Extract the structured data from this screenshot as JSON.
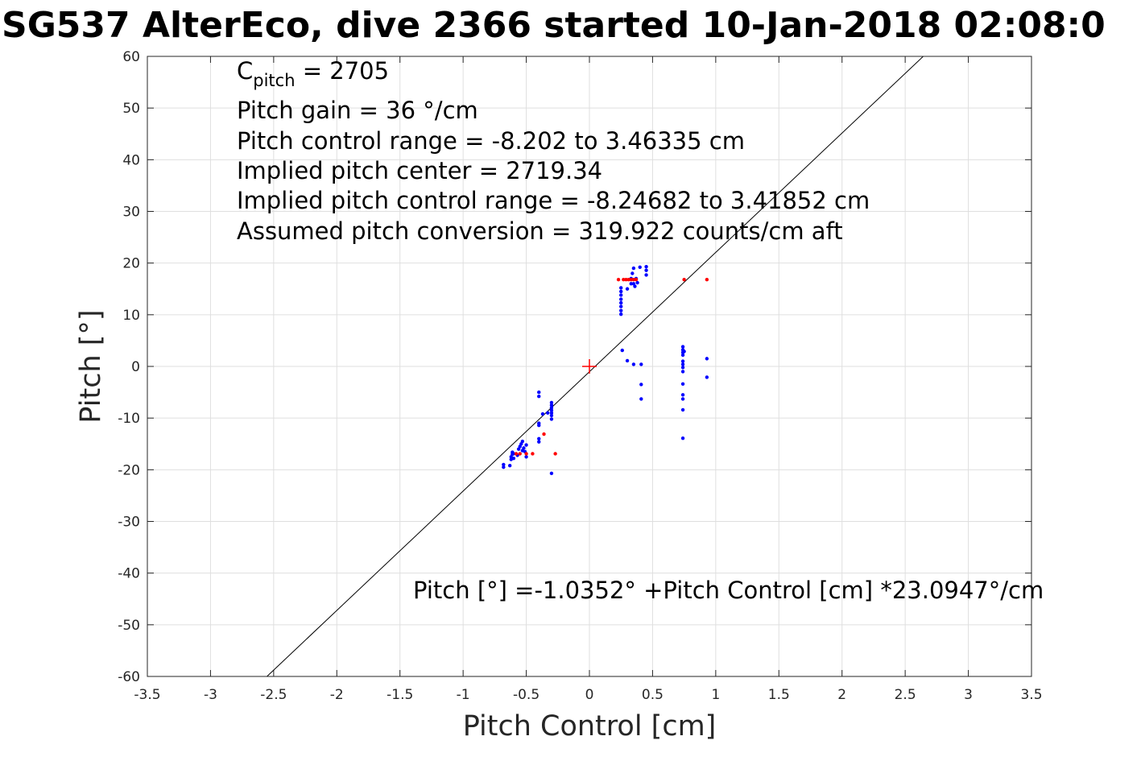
{
  "chart_data": {
    "type": "scatter",
    "title": "SG537 AlterEco, dive 2366 started 10-Jan-2018 02:08:0",
    "xlabel": "Pitch Control [cm]",
    "ylabel": "Pitch [°]",
    "xlim": [
      -3.5,
      3.5
    ],
    "ylim": [
      -60,
      60
    ],
    "xticks": [
      -3.5,
      -3,
      -2.5,
      -2,
      -1.5,
      -1,
      -0.5,
      0,
      0.5,
      1,
      1.5,
      2,
      2.5,
      3,
      3.5
    ],
    "yticks": [
      -60,
      -50,
      -40,
      -30,
      -20,
      -10,
      0,
      10,
      20,
      30,
      40,
      50,
      60
    ],
    "xtick_labels": [
      "-3.5",
      "-3",
      "-2.5",
      "-2",
      "-1.5",
      "-1",
      "-0.5",
      "0",
      "0.5",
      "1",
      "1.5",
      "2",
      "2.5",
      "3",
      "3.5"
    ],
    "ytick_labels": [
      "-60",
      "-50",
      "-40",
      "-30",
      "-20",
      "-10",
      "0",
      "10",
      "20",
      "30",
      "40",
      "50",
      "60"
    ],
    "grid": true,
    "annotations": {
      "c_pitch_main": "C",
      "c_pitch_sub": "pitch",
      "c_pitch_value": " = 2705",
      "pitch_gain": "Pitch gain = 36 °/cm",
      "control_range": "Pitch control range = -8.202 to 3.46335 cm",
      "implied_center": "Implied pitch center = 2719.34",
      "implied_range": "Implied pitch control range = -8.24682 to 3.41852 cm",
      "conversion": "Assumed pitch conversion = 319.922 counts/cm aft",
      "fit_equation": "Pitch [°] =-1.0352° +Pitch Control [cm] *23.0947°/cm"
    },
    "fit_line": {
      "intercept": -1.0352,
      "slope": 23.0947,
      "color": "#000000"
    },
    "center_marker": {
      "x": 0,
      "y": 0,
      "color": "#ff0000"
    },
    "series": [
      {
        "color": "#0000ff",
        "points": [
          [
            -0.68,
            -19.0
          ],
          [
            -0.68,
            -19.5
          ],
          [
            -0.63,
            -19.2
          ],
          [
            -0.62,
            -18.0
          ],
          [
            -0.62,
            -17.5
          ],
          [
            -0.61,
            -17.0
          ],
          [
            -0.61,
            -16.6
          ],
          [
            -0.6,
            -16.9
          ],
          [
            -0.6,
            -17.8
          ],
          [
            -0.57,
            -17.2
          ],
          [
            -0.56,
            -16.0
          ],
          [
            -0.55,
            -15.5
          ],
          [
            -0.54,
            -15.0
          ],
          [
            -0.53,
            -14.5
          ],
          [
            -0.53,
            -16.3
          ],
          [
            -0.52,
            -15.8
          ],
          [
            -0.51,
            -16.5
          ],
          [
            -0.5,
            -15.2
          ],
          [
            -0.5,
            -17.5
          ],
          [
            -0.4,
            -5.0
          ],
          [
            -0.4,
            -5.8
          ],
          [
            -0.4,
            -11.0
          ],
          [
            -0.4,
            -11.4
          ],
          [
            -0.4,
            -14.0
          ],
          [
            -0.4,
            -14.6
          ],
          [
            -0.37,
            -9.2
          ],
          [
            -0.33,
            -9.0
          ],
          [
            -0.3,
            -7.0
          ],
          [
            -0.3,
            -7.5
          ],
          [
            -0.3,
            -8.0
          ],
          [
            -0.3,
            -8.5
          ],
          [
            -0.3,
            -9.0
          ],
          [
            -0.3,
            -9.5
          ],
          [
            -0.3,
            -10.2
          ],
          [
            -0.3,
            -20.7
          ],
          [
            0.25,
            10.1
          ],
          [
            0.25,
            10.8
          ],
          [
            0.25,
            11.6
          ],
          [
            0.25,
            12.3
          ],
          [
            0.25,
            13.0
          ],
          [
            0.25,
            13.8
          ],
          [
            0.25,
            14.5
          ],
          [
            0.25,
            15.2
          ],
          [
            0.26,
            3.1
          ],
          [
            0.3,
            15.0
          ],
          [
            0.3,
            1.1
          ],
          [
            0.33,
            16.0
          ],
          [
            0.33,
            17.0
          ],
          [
            0.34,
            18.0
          ],
          [
            0.35,
            19.0
          ],
          [
            0.35,
            16.0
          ],
          [
            0.35,
            0.4
          ],
          [
            0.36,
            15.5
          ],
          [
            0.37,
            17.0
          ],
          [
            0.38,
            16.2
          ],
          [
            0.4,
            19.2
          ],
          [
            0.41,
            0.4
          ],
          [
            0.41,
            -3.5
          ],
          [
            0.41,
            -6.3
          ],
          [
            0.45,
            19.3
          ],
          [
            0.45,
            18.6
          ],
          [
            0.45,
            17.7
          ],
          [
            0.74,
            3.8
          ],
          [
            0.74,
            3.2
          ],
          [
            0.74,
            2.7
          ],
          [
            0.74,
            2.2
          ],
          [
            0.74,
            1.0
          ],
          [
            0.74,
            0.4
          ],
          [
            0.74,
            -0.2
          ],
          [
            0.74,
            -1.0
          ],
          [
            0.74,
            -3.4
          ],
          [
            0.74,
            -5.5
          ],
          [
            0.74,
            -6.3
          ],
          [
            0.74,
            -8.4
          ],
          [
            0.74,
            -13.9
          ],
          [
            0.75,
            2.9
          ],
          [
            0.93,
            1.5
          ],
          [
            0.93,
            -2.1
          ]
        ]
      },
      {
        "color": "#ff0000",
        "points": [
          [
            -0.58,
            -16.9
          ],
          [
            -0.55,
            -16.9
          ],
          [
            -0.5,
            -16.9
          ],
          [
            -0.45,
            -16.9
          ],
          [
            -0.36,
            -13.1
          ],
          [
            -0.27,
            -16.9
          ],
          [
            0.23,
            16.8
          ],
          [
            0.27,
            16.8
          ],
          [
            0.29,
            16.8
          ],
          [
            0.31,
            16.8
          ],
          [
            0.33,
            16.8
          ],
          [
            0.35,
            16.8
          ],
          [
            0.37,
            16.8
          ],
          [
            0.75,
            16.8
          ],
          [
            0.93,
            16.8
          ]
        ]
      }
    ]
  }
}
